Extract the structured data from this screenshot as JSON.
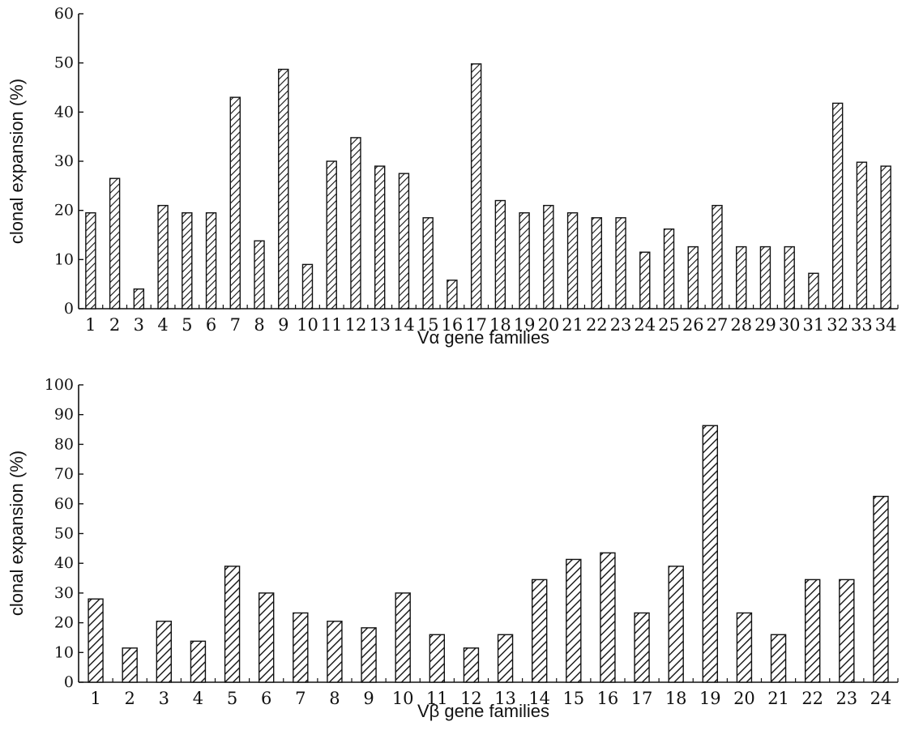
{
  "chart_data": [
    {
      "type": "bar",
      "xlabel": "Vα gene families",
      "ylabel": "clonal expansion (%)",
      "ylim": [
        0,
        60
      ],
      "yticks": [
        0,
        10,
        20,
        30,
        40,
        50,
        60
      ],
      "grid": false,
      "categories": [
        "1",
        "2",
        "3",
        "4",
        "5",
        "6",
        "7",
        "8",
        "9",
        "10",
        "11",
        "12",
        "13",
        "14",
        "15",
        "16",
        "17",
        "18",
        "19",
        "20",
        "21",
        "22",
        "23",
        "24",
        "25",
        "26",
        "27",
        "28",
        "29",
        "30",
        "31",
        "32",
        "33",
        "34"
      ],
      "values": [
        19.5,
        26.5,
        4,
        21,
        19.5,
        19.5,
        43,
        13.8,
        48.7,
        9,
        30,
        34.8,
        29,
        27.5,
        18.5,
        5.8,
        49.8,
        22,
        19.5,
        21,
        19.5,
        18.5,
        18.5,
        11.5,
        16.2,
        12.6,
        21,
        12.6,
        12.6,
        12.6,
        7.2,
        41.8,
        29.8,
        29
      ]
    },
    {
      "type": "bar",
      "xlabel": "Vβ gene families",
      "ylabel": "clonal expansion (%)",
      "ylim": [
        0,
        100
      ],
      "yticks": [
        0,
        10,
        20,
        30,
        40,
        50,
        60,
        70,
        80,
        90,
        100
      ],
      "grid": false,
      "categories": [
        "1",
        "2",
        "3",
        "4",
        "5",
        "6",
        "7",
        "8",
        "9",
        "10",
        "11",
        "12",
        "13",
        "14",
        "15",
        "16",
        "17",
        "18",
        "19",
        "20",
        "21",
        "22",
        "23",
        "24"
      ],
      "values": [
        28,
        11.5,
        20.5,
        13.8,
        39,
        30,
        23.3,
        20.5,
        18.3,
        30,
        16,
        11.5,
        16,
        34.5,
        41.3,
        43.5,
        23.3,
        39,
        86.3,
        23.3,
        16,
        34.5,
        34.5,
        62.5
      ]
    }
  ]
}
